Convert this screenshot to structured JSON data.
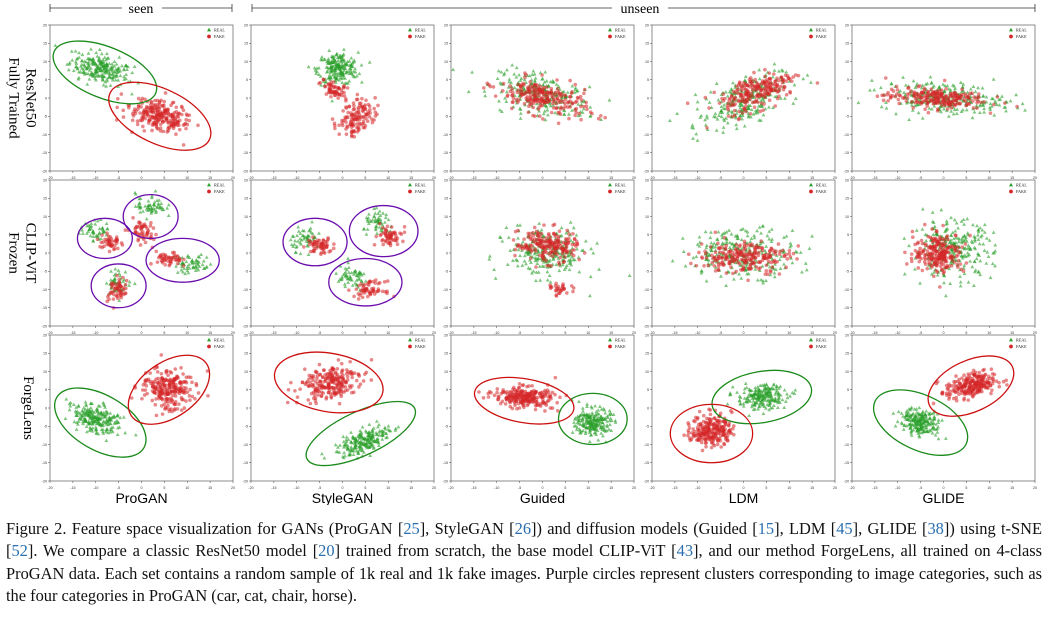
{
  "header": {
    "seen_label": "seen",
    "unseen_label": "unseen"
  },
  "rows": [
    {
      "label_lines": [
        "Fully Trained",
        "ResNet50"
      ]
    },
    {
      "label_lines": [
        "Frozen",
        "CLIP-ViT"
      ]
    },
    {
      "label_lines": [
        "ForgeLens"
      ]
    }
  ],
  "columns": [
    "ProGAN",
    "StyleGAN",
    "Guided",
    "LDM",
    "GLIDE"
  ],
  "legend": {
    "real": "REAL",
    "fake": "FAKE"
  },
  "axis": {
    "x_ticks": [
      "-20",
      "-15",
      "-10",
      "-5",
      "0",
      "5",
      "10",
      "15",
      "20"
    ],
    "y_ticks": [
      "20",
      "15",
      "10",
      "5",
      "0",
      "-5",
      "-10",
      "-15",
      "-20"
    ],
    "xlim": [
      -20,
      20
    ],
    "ylim": [
      -20,
      20
    ]
  },
  "colors": {
    "real": "#2ca02c",
    "fake": "#d62728",
    "circle_real": "#1a8a1a",
    "circle_fake": "#cc1111",
    "circle_category": "#6a0dad",
    "cite": "#2a6fb0"
  },
  "chart_data": {
    "type": "scatter",
    "method": "t-SNE",
    "series": [
      {
        "name": "REAL",
        "marker": "triangle",
        "color": "#2ca02c"
      },
      {
        "name": "FAKE",
        "marker": "circle",
        "color": "#d62728"
      }
    ],
    "panels": [
      {
        "row": "Fully Trained ResNet50",
        "column": "ProGAN",
        "real": [
          {
            "cx": -9,
            "cy": 8,
            "sx": 6,
            "sy": 3.5,
            "rot": -22,
            "n": 240
          }
        ],
        "fake": [
          {
            "cx": 4,
            "cy": -5,
            "sx": 6.5,
            "sy": 3.5,
            "rot": -25,
            "n": 240
          }
        ],
        "circles": [
          {
            "color": "real",
            "cx": -8,
            "cy": 7,
            "rx": 12,
            "ry": 7,
            "rot": -22
          },
          {
            "color": "fake",
            "cx": 4,
            "cy": -5,
            "rx": 12,
            "ry": 7.5,
            "rot": -25
          }
        ]
      },
      {
        "row": "Fully Trained ResNet50",
        "column": "StyleGAN",
        "real": [
          {
            "cx": -1,
            "cy": 8,
            "sx": 4,
            "sy": 4,
            "rot": 0,
            "n": 220
          }
        ],
        "fake": [
          {
            "cx": 3,
            "cy": -5,
            "sx": 3,
            "sy": 5,
            "rot": -30,
            "n": 130
          },
          {
            "cx": -2,
            "cy": 2,
            "sx": 3,
            "sy": 2,
            "rot": -30,
            "n": 60
          }
        ],
        "circles": []
      },
      {
        "row": "Fully Trained ResNet50",
        "column": "Guided",
        "real": [
          {
            "cx": 0,
            "cy": 1,
            "sx": 10,
            "sy": 4.5,
            "rot": -18,
            "n": 250
          }
        ],
        "fake": [
          {
            "cx": 0,
            "cy": 0,
            "sx": 9,
            "sy": 4,
            "rot": -18,
            "n": 230
          }
        ],
        "circles": []
      },
      {
        "row": "Fully Trained ResNet50",
        "column": "LDM",
        "real": [
          {
            "cx": 0,
            "cy": -1,
            "sx": 10,
            "sy": 5,
            "rot": 30,
            "n": 250
          }
        ],
        "fake": [
          {
            "cx": 3,
            "cy": 2,
            "sx": 8,
            "sy": 4,
            "rot": 30,
            "n": 230
          }
        ],
        "circles": []
      },
      {
        "row": "Fully Trained ResNet50",
        "column": "GLIDE",
        "real": [
          {
            "cx": 0,
            "cy": 0,
            "sx": 12,
            "sy": 4,
            "rot": -5,
            "n": 260
          }
        ],
        "fake": [
          {
            "cx": -2,
            "cy": 0,
            "sx": 10,
            "sy": 2.5,
            "rot": -3,
            "n": 220
          }
        ],
        "circles": []
      },
      {
        "row": "Frozen CLIP-ViT",
        "column": "ProGAN",
        "real": [
          {
            "cx": 2,
            "cy": 13,
            "sx": 3,
            "sy": 3,
            "rot": 0,
            "n": 60
          },
          {
            "cx": -10,
            "cy": 6,
            "sx": 3,
            "sy": 2.5,
            "rot": 0,
            "n": 50
          },
          {
            "cx": -5,
            "cy": -8,
            "sx": 2.5,
            "sy": 3,
            "rot": 0,
            "n": 45
          },
          {
            "cx": 11,
            "cy": -3,
            "sx": 3.5,
            "sy": 2.5,
            "rot": 0,
            "n": 60
          }
        ],
        "fake": [
          {
            "cx": 0,
            "cy": 6,
            "sx": 2,
            "sy": 3,
            "rot": 20,
            "n": 55
          },
          {
            "cx": -7,
            "cy": 3,
            "sx": 2,
            "sy": 2.5,
            "rot": 0,
            "n": 45
          },
          {
            "cx": -5,
            "cy": -10,
            "sx": 2,
            "sy": 3,
            "rot": -20,
            "n": 55
          },
          {
            "cx": 6,
            "cy": -2,
            "sx": 2.5,
            "sy": 2,
            "rot": 0,
            "n": 50
          }
        ],
        "circles": [
          {
            "color": "category",
            "cx": 2,
            "cy": 10,
            "rx": 6,
            "ry": 6,
            "rot": 0
          },
          {
            "color": "category",
            "cx": -8,
            "cy": 4,
            "rx": 6,
            "ry": 5.5,
            "rot": 0
          },
          {
            "color": "category",
            "cx": -5,
            "cy": -9,
            "rx": 6,
            "ry": 6,
            "rot": 0
          },
          {
            "color": "category",
            "cx": 9,
            "cy": -2,
            "rx": 8,
            "ry": 6,
            "rot": 0
          }
        ]
      },
      {
        "row": "Frozen CLIP-ViT",
        "column": "StyleGAN",
        "real": [
          {
            "cx": -8,
            "cy": 4,
            "sx": 3,
            "sy": 3,
            "rot": 0,
            "n": 55
          },
          {
            "cx": 8,
            "cy": 8,
            "sx": 3,
            "sy": 3,
            "rot": 0,
            "n": 55
          },
          {
            "cx": 2,
            "cy": -7,
            "sx": 3.5,
            "sy": 3,
            "rot": 0,
            "n": 60
          }
        ],
        "fake": [
          {
            "cx": -5,
            "cy": 2,
            "sx": 2.5,
            "sy": 2,
            "rot": 0,
            "n": 60
          },
          {
            "cx": 10,
            "cy": 5,
            "sx": 2.5,
            "sy": 2.5,
            "rot": 20,
            "n": 60
          },
          {
            "cx": 6,
            "cy": -10,
            "sx": 3,
            "sy": 2,
            "rot": 0,
            "n": 60
          }
        ],
        "circles": [
          {
            "color": "category",
            "cx": -6,
            "cy": 3,
            "rx": 7,
            "ry": 6.5,
            "rot": 0
          },
          {
            "color": "category",
            "cx": 9,
            "cy": 6,
            "rx": 7.5,
            "ry": 7,
            "rot": 0
          },
          {
            "color": "category",
            "cx": 5,
            "cy": -8,
            "rx": 8,
            "ry": 6.5,
            "rot": 0
          }
        ]
      },
      {
        "row": "Frozen CLIP-ViT",
        "column": "Guided",
        "real": [
          {
            "cx": 1,
            "cy": 0,
            "sx": 8,
            "sy": 6,
            "rot": -10,
            "n": 250
          }
        ],
        "fake": [
          {
            "cx": 1,
            "cy": 2,
            "sx": 6,
            "sy": 4,
            "rot": -10,
            "n": 200
          },
          {
            "cx": 4,
            "cy": -10,
            "sx": 2,
            "sy": 1.5,
            "rot": 0,
            "n": 30
          }
        ],
        "circles": []
      },
      {
        "row": "Frozen CLIP-ViT",
        "column": "LDM",
        "real": [
          {
            "cx": 0,
            "cy": 0,
            "sx": 11,
            "sy": 6,
            "rot": 0,
            "n": 260
          }
        ],
        "fake": [
          {
            "cx": 0,
            "cy": -1,
            "sx": 9,
            "sy": 4,
            "rot": 0,
            "n": 230
          }
        ],
        "circles": []
      },
      {
        "row": "Frozen CLIP-ViT",
        "column": "GLIDE",
        "real": [
          {
            "cx": 2,
            "cy": 1,
            "sx": 8,
            "sy": 7,
            "rot": 0,
            "n": 260
          }
        ],
        "fake": [
          {
            "cx": -1,
            "cy": 0,
            "sx": 5,
            "sy": 5,
            "rot": 0,
            "n": 230
          }
        ],
        "circles": []
      },
      {
        "row": "ForgeLens",
        "column": "ProGAN",
        "real": [
          {
            "cx": -10,
            "cy": -3,
            "sx": 5,
            "sy": 3,
            "rot": -30,
            "n": 240
          }
        ],
        "fake": [
          {
            "cx": 6,
            "cy": 5,
            "sx": 5,
            "sy": 5,
            "rot": 30,
            "n": 240
          }
        ],
        "circles": [
          {
            "color": "real",
            "cx": -9,
            "cy": -4,
            "rx": 11,
            "ry": 7.5,
            "rot": -30
          },
          {
            "color": "fake",
            "cx": 6,
            "cy": 5,
            "rx": 10,
            "ry": 7.5,
            "rot": 35
          }
        ]
      },
      {
        "row": "ForgeLens",
        "column": "StyleGAN",
        "real": [
          {
            "cx": 5,
            "cy": -9,
            "sx": 6,
            "sy": 2.5,
            "rot": 30,
            "n": 220
          }
        ],
        "fake": [
          {
            "cx": -3,
            "cy": 7,
            "sx": 6,
            "sy": 4,
            "rot": 20,
            "n": 230
          }
        ],
        "circles": [
          {
            "color": "real",
            "cx": 4,
            "cy": -7,
            "rx": 13,
            "ry": 6,
            "rot": 25
          },
          {
            "color": "fake",
            "cx": -3,
            "cy": 7,
            "rx": 12,
            "ry": 8,
            "rot": -10
          }
        ]
      },
      {
        "row": "ForgeLens",
        "column": "Guided",
        "real": [
          {
            "cx": 11,
            "cy": -4,
            "sx": 3.5,
            "sy": 3.5,
            "rot": 0,
            "n": 220
          }
        ],
        "fake": [
          {
            "cx": -4,
            "cy": 3,
            "sx": 6,
            "sy": 2.5,
            "rot": -5,
            "n": 240
          }
        ],
        "circles": [
          {
            "color": "real",
            "cx": 11,
            "cy": -3,
            "rx": 7.5,
            "ry": 7,
            "rot": 0
          },
          {
            "color": "fake",
            "cx": -4,
            "cy": 2,
            "rx": 11,
            "ry": 6,
            "rot": -10
          }
        ]
      },
      {
        "row": "ForgeLens",
        "column": "LDM",
        "real": [
          {
            "cx": 4,
            "cy": 3,
            "sx": 5,
            "sy": 3,
            "rot": 10,
            "n": 220
          }
        ],
        "fake": [
          {
            "cx": -7,
            "cy": -6,
            "sx": 4,
            "sy": 4,
            "rot": 0,
            "n": 240
          }
        ],
        "circles": [
          {
            "color": "real",
            "cx": 4,
            "cy": 3,
            "rx": 11,
            "ry": 7,
            "rot": 10
          },
          {
            "color": "fake",
            "cx": -7,
            "cy": -7,
            "rx": 9,
            "ry": 8,
            "rot": 0
          }
        ]
      },
      {
        "row": "ForgeLens",
        "column": "GLIDE",
        "real": [
          {
            "cx": -5,
            "cy": -4,
            "sx": 4,
            "sy": 3,
            "rot": -20,
            "n": 230
          }
        ],
        "fake": [
          {
            "cx": 6,
            "cy": 6,
            "sx": 5,
            "sy": 3,
            "rot": 15,
            "n": 240
          }
        ],
        "circles": [
          {
            "color": "real",
            "cx": -5,
            "cy": -4,
            "rx": 11,
            "ry": 7.5,
            "rot": -25
          },
          {
            "color": "fake",
            "cx": 6,
            "cy": 6,
            "rx": 10,
            "ry": 7,
            "rot": 25
          }
        ]
      }
    ]
  },
  "caption": {
    "parts": [
      {
        "t": "Figure 2.  Feature space visualization for GANs (ProGAN ["
      },
      {
        "t": "25",
        "cite": true
      },
      {
        "t": "], StyleGAN ["
      },
      {
        "t": "26",
        "cite": true
      },
      {
        "t": "]) and diffusion models (Guided ["
      },
      {
        "t": "15",
        "cite": true
      },
      {
        "t": "], LDM ["
      },
      {
        "t": "45",
        "cite": true
      },
      {
        "t": "], GLIDE ["
      },
      {
        "t": "38",
        "cite": true
      },
      {
        "t": "]) using t-SNE ["
      },
      {
        "t": "52",
        "cite": true
      },
      {
        "t": "].  We compare a classic ResNet50 model ["
      },
      {
        "t": "20",
        "cite": true
      },
      {
        "t": "] trained from scratch, the base model CLIP-ViT ["
      },
      {
        "t": "43",
        "cite": true
      },
      {
        "t": "], and our method ForgeLens, all trained on 4-class ProGAN data.  Each set contains a random sample of 1k real and 1k fake images.  Purple circles represent clusters corresponding to image categories, such as the four categories in ProGAN (car, cat, chair, horse)."
      }
    ]
  }
}
